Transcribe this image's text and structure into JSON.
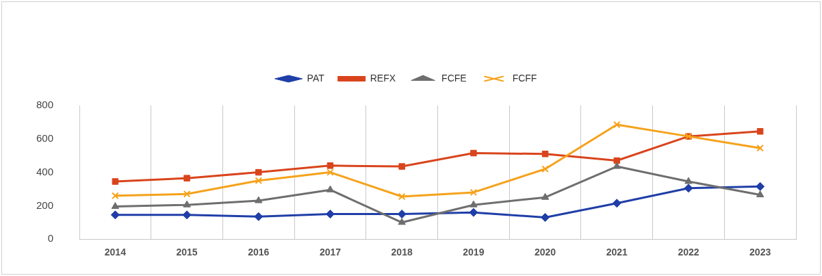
{
  "chart_data": {
    "type": "line",
    "categories": [
      "2014",
      "2015",
      "2016",
      "2017",
      "2018",
      "2019",
      "2020",
      "2021",
      "2022",
      "2023"
    ],
    "series": [
      {
        "name": "PAT",
        "color": "#1f3ea8",
        "marker": "diamond",
        "values": [
          145,
          145,
          135,
          150,
          150,
          160,
          130,
          215,
          305,
          315
        ]
      },
      {
        "name": "REFX",
        "color": "#d9441c",
        "marker": "square",
        "values": [
          345,
          365,
          400,
          440,
          435,
          515,
          510,
          470,
          615,
          645
        ]
      },
      {
        "name": "FCFE",
        "color": "#6e6e6e",
        "marker": "triangle",
        "values": [
          195,
          205,
          230,
          295,
          100,
          205,
          250,
          435,
          345,
          265
        ]
      },
      {
        "name": "FCFF",
        "color": "#f5a21b",
        "marker": "cross",
        "values": [
          260,
          270,
          350,
          400,
          255,
          280,
          420,
          685,
          615,
          545
        ]
      }
    ],
    "ylim": [
      0,
      800
    ],
    "yticks": [
      0,
      200,
      400,
      600,
      800
    ],
    "grid": "x",
    "legend": "top",
    "line_style": "solid"
  }
}
